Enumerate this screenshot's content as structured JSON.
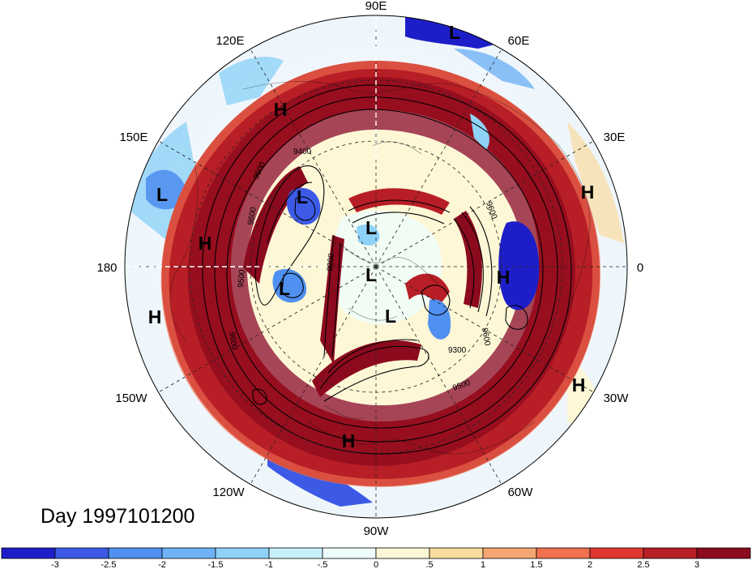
{
  "map": {
    "projection": "polar-stereographic",
    "hemisphere": "north",
    "graticule": "dashed",
    "longitude_labels": [
      "90E",
      "60E",
      "30E",
      "0",
      "30W",
      "60W",
      "90W",
      "120W",
      "150W",
      "180",
      "150E",
      "120E"
    ],
    "highs_lows": [
      {
        "label": "L",
        "region": "north-rim-60E"
      },
      {
        "label": "H",
        "region": "east-asia"
      },
      {
        "label": "L",
        "region": "far-east-siberia"
      },
      {
        "label": "L",
        "region": "bering"
      },
      {
        "label": "H",
        "region": "north-pacific"
      },
      {
        "label": "H",
        "region": "west-pacific"
      },
      {
        "label": "L",
        "region": "gulf-of-alaska"
      },
      {
        "label": "L",
        "region": "arctic-siberian-side"
      },
      {
        "label": "L",
        "region": "pole"
      },
      {
        "label": "L",
        "region": "canadian-arctic"
      },
      {
        "label": "H",
        "region": "europe-north"
      },
      {
        "label": "H",
        "region": "scandinavia"
      },
      {
        "label": "H",
        "region": "atlantic"
      },
      {
        "label": "H",
        "region": "gulf-of-mexico"
      }
    ],
    "contour_labels": [
      "9400",
      "9600",
      "9600",
      "9500",
      "9200",
      "9300",
      "9500",
      "9600",
      "9600",
      "9600"
    ]
  },
  "day_label": "Day 1997101200",
  "colorbar": {
    "labels": [
      "-3",
      "-2.5",
      "-2",
      "-1.5",
      "-1",
      "-.5",
      "0",
      ".5",
      "1",
      "1.5",
      "2",
      "2.5",
      "3"
    ],
    "colors": [
      "#1e1ec8",
      "#3c5ae6",
      "#5090f0",
      "#6fb2f5",
      "#8fd2f8",
      "#c8f0fa",
      "#eefcfc",
      "#fdf7d6",
      "#fbdca0",
      "#f5a673",
      "#f07050",
      "#e03830",
      "#b81e26",
      "#8c0a1e"
    ]
  }
}
